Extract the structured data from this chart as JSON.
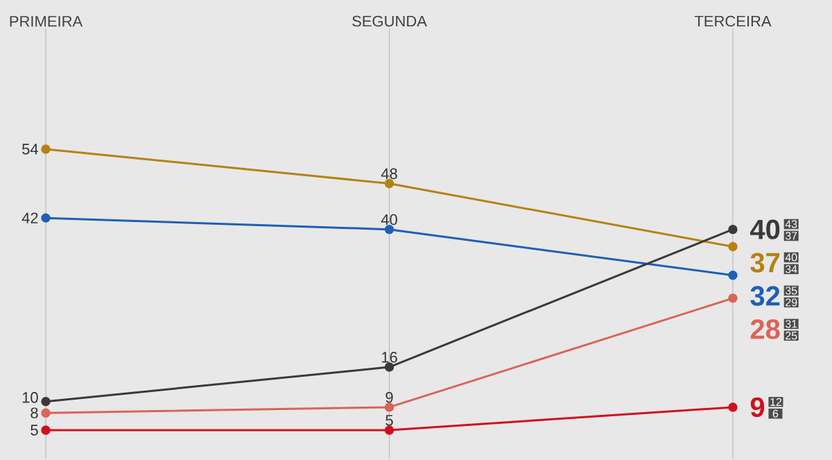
{
  "chart_data": {
    "type": "line",
    "categories": [
      "PRIMEIRA",
      "SEGUNDA",
      "TERCEIRA"
    ],
    "series": [
      {
        "color": "#b5820f",
        "values": [
          54,
          48,
          37
        ]
      },
      {
        "color": "#1f5fb5",
        "values": [
          42,
          40,
          32
        ]
      },
      {
        "color": "#3a3a3a",
        "values": [
          10,
          16,
          40
        ]
      },
      {
        "color": "#d9645a",
        "values": [
          8,
          9,
          28
        ]
      },
      {
        "color": "#d0101e",
        "values": [
          5,
          5,
          9
        ]
      }
    ],
    "annotations": [
      "40",
      "34",
      "35",
      "29",
      "43",
      "37",
      "31",
      "25",
      "12",
      "6"
    ],
    "ylim": [
      0,
      75
    ],
    "data_labels": true,
    "grid": "x",
    "marker": "circle"
  }
}
